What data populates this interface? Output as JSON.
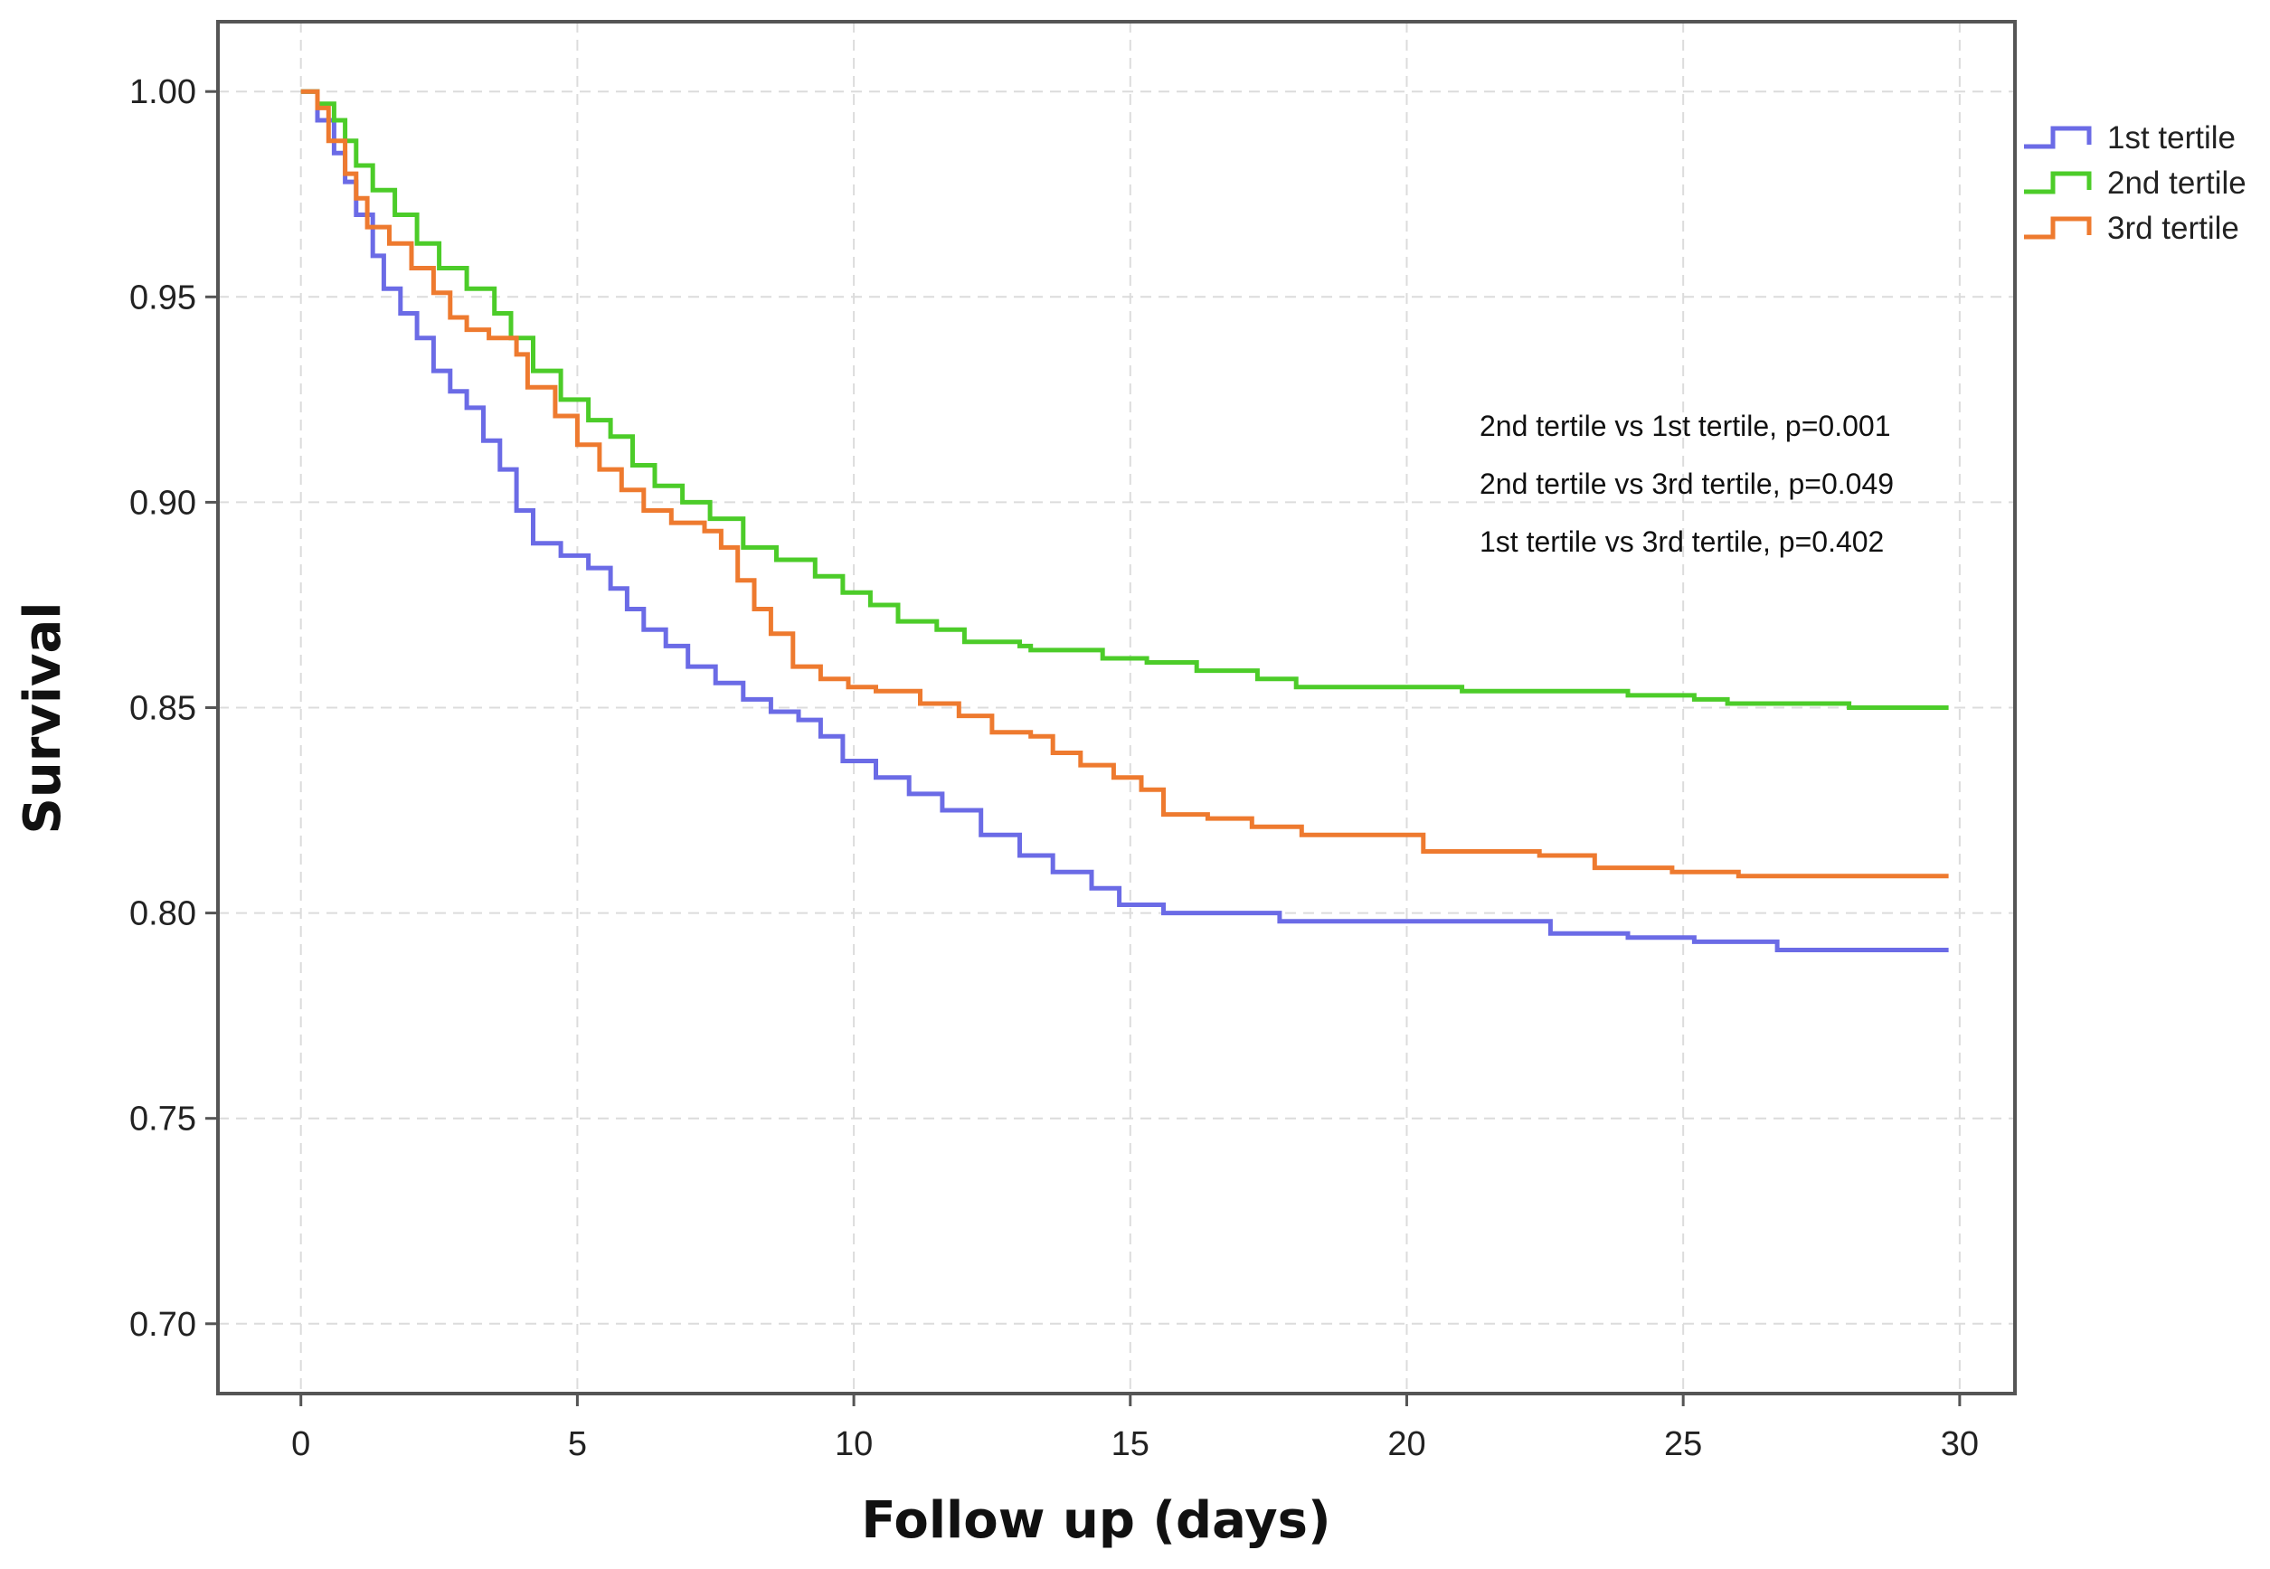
{
  "chart_data": {
    "type": "line",
    "step": true,
    "title": "",
    "xlabel": "Follow up (days)",
    "ylabel": "Survival",
    "xlim": [
      -1.5,
      31
    ],
    "ylim": [
      0.683,
      1.017
    ],
    "xticks": [
      0,
      5,
      10,
      15,
      20,
      25,
      30
    ],
    "xtick_labels": [
      "0",
      "5",
      "10",
      "15",
      "20",
      "25",
      "30"
    ],
    "yticks": [
      0.7,
      0.75,
      0.8,
      0.85,
      0.9,
      0.95,
      1.0
    ],
    "ytick_labels": [
      "0.70",
      "0.75",
      "0.80",
      "0.85",
      "0.90",
      "0.95",
      "1.00"
    ],
    "grid": true,
    "legend_position": "top-right outside",
    "series": [
      {
        "name": "1st tertile",
        "color": "#6b6be6",
        "points": [
          [
            0,
            1.0
          ],
          [
            0.3,
            0.993
          ],
          [
            0.6,
            0.985
          ],
          [
            0.8,
            0.978
          ],
          [
            1.0,
            0.97
          ],
          [
            1.3,
            0.96
          ],
          [
            1.5,
            0.952
          ],
          [
            1.8,
            0.946
          ],
          [
            2.1,
            0.94
          ],
          [
            2.4,
            0.932
          ],
          [
            2.7,
            0.927
          ],
          [
            3.0,
            0.923
          ],
          [
            3.3,
            0.915
          ],
          [
            3.6,
            0.908
          ],
          [
            3.9,
            0.898
          ],
          [
            4.2,
            0.89
          ],
          [
            4.7,
            0.887
          ],
          [
            5.2,
            0.884
          ],
          [
            5.6,
            0.879
          ],
          [
            5.9,
            0.874
          ],
          [
            6.2,
            0.869
          ],
          [
            6.6,
            0.865
          ],
          [
            7.0,
            0.86
          ],
          [
            7.5,
            0.856
          ],
          [
            8.0,
            0.852
          ],
          [
            8.5,
            0.849
          ],
          [
            9.0,
            0.847
          ],
          [
            9.4,
            0.843
          ],
          [
            9.8,
            0.837
          ],
          [
            10.4,
            0.833
          ],
          [
            11.0,
            0.829
          ],
          [
            11.6,
            0.825
          ],
          [
            12.3,
            0.819
          ],
          [
            13.0,
            0.814
          ],
          [
            13.6,
            0.81
          ],
          [
            14.3,
            0.806
          ],
          [
            14.8,
            0.802
          ],
          [
            15.6,
            0.8
          ],
          [
            16.5,
            0.8
          ],
          [
            17.7,
            0.798
          ],
          [
            20.0,
            0.798
          ],
          [
            22.6,
            0.795
          ],
          [
            24.0,
            0.794
          ],
          [
            25.2,
            0.793
          ],
          [
            26.7,
            0.791
          ],
          [
            29.8,
            0.791
          ]
        ]
      },
      {
        "name": "2nd tertile",
        "color": "#4ccc29",
        "points": [
          [
            0,
            1.0
          ],
          [
            0.3,
            0.997
          ],
          [
            0.6,
            0.993
          ],
          [
            0.8,
            0.988
          ],
          [
            1.0,
            0.982
          ],
          [
            1.3,
            0.976
          ],
          [
            1.7,
            0.97
          ],
          [
            2.1,
            0.963
          ],
          [
            2.5,
            0.957
          ],
          [
            3.0,
            0.952
          ],
          [
            3.5,
            0.946
          ],
          [
            3.8,
            0.94
          ],
          [
            4.2,
            0.932
          ],
          [
            4.7,
            0.925
          ],
          [
            5.2,
            0.92
          ],
          [
            5.6,
            0.916
          ],
          [
            6.0,
            0.909
          ],
          [
            6.4,
            0.904
          ],
          [
            6.9,
            0.9
          ],
          [
            7.4,
            0.896
          ],
          [
            8.0,
            0.889
          ],
          [
            8.6,
            0.886
          ],
          [
            9.3,
            0.882
          ],
          [
            9.8,
            0.878
          ],
          [
            10.3,
            0.875
          ],
          [
            10.8,
            0.871
          ],
          [
            11.5,
            0.869
          ],
          [
            12.0,
            0.866
          ],
          [
            13.0,
            0.865
          ],
          [
            13.2,
            0.864
          ],
          [
            14.5,
            0.862
          ],
          [
            15.3,
            0.861
          ],
          [
            16.2,
            0.859
          ],
          [
            17.3,
            0.857
          ],
          [
            18.0,
            0.855
          ],
          [
            20.0,
            0.855
          ],
          [
            21.0,
            0.854
          ],
          [
            24.0,
            0.853
          ],
          [
            25.2,
            0.852
          ],
          [
            25.8,
            0.851
          ],
          [
            28.0,
            0.85
          ],
          [
            29.8,
            0.85
          ]
        ]
      },
      {
        "name": "3rd tertile",
        "color": "#ee7a2f",
        "points": [
          [
            0,
            1.0
          ],
          [
            0.3,
            0.996
          ],
          [
            0.5,
            0.988
          ],
          [
            0.8,
            0.98
          ],
          [
            1.0,
            0.974
          ],
          [
            1.2,
            0.967
          ],
          [
            1.6,
            0.963
          ],
          [
            2.0,
            0.957
          ],
          [
            2.4,
            0.951
          ],
          [
            2.7,
            0.945
          ],
          [
            3.0,
            0.942
          ],
          [
            3.4,
            0.94
          ],
          [
            3.9,
            0.936
          ],
          [
            4.1,
            0.928
          ],
          [
            4.6,
            0.921
          ],
          [
            5.0,
            0.914
          ],
          [
            5.4,
            0.908
          ],
          [
            5.8,
            0.903
          ],
          [
            6.2,
            0.898
          ],
          [
            6.7,
            0.895
          ],
          [
            7.3,
            0.893
          ],
          [
            7.6,
            0.889
          ],
          [
            7.9,
            0.881
          ],
          [
            8.2,
            0.874
          ],
          [
            8.5,
            0.868
          ],
          [
            8.9,
            0.86
          ],
          [
            9.4,
            0.857
          ],
          [
            9.9,
            0.855
          ],
          [
            10.4,
            0.854
          ],
          [
            11.2,
            0.851
          ],
          [
            11.9,
            0.848
          ],
          [
            12.5,
            0.844
          ],
          [
            13.2,
            0.843
          ],
          [
            13.6,
            0.839
          ],
          [
            14.1,
            0.836
          ],
          [
            14.7,
            0.833
          ],
          [
            15.2,
            0.83
          ],
          [
            15.6,
            0.824
          ],
          [
            16.4,
            0.823
          ],
          [
            17.2,
            0.821
          ],
          [
            18.1,
            0.819
          ],
          [
            19.0,
            0.819
          ],
          [
            20.3,
            0.815
          ],
          [
            22.4,
            0.814
          ],
          [
            23.4,
            0.811
          ],
          [
            24.8,
            0.81
          ],
          [
            26.0,
            0.809
          ],
          [
            29.8,
            0.809
          ]
        ]
      }
    ],
    "annotations": [
      "2nd tertile vs 1st tertile, p=0.001",
      "2nd tertile vs 3rd tertile, p=0.049",
      "1st tertile vs 3rd tertile, p=0.402"
    ]
  }
}
